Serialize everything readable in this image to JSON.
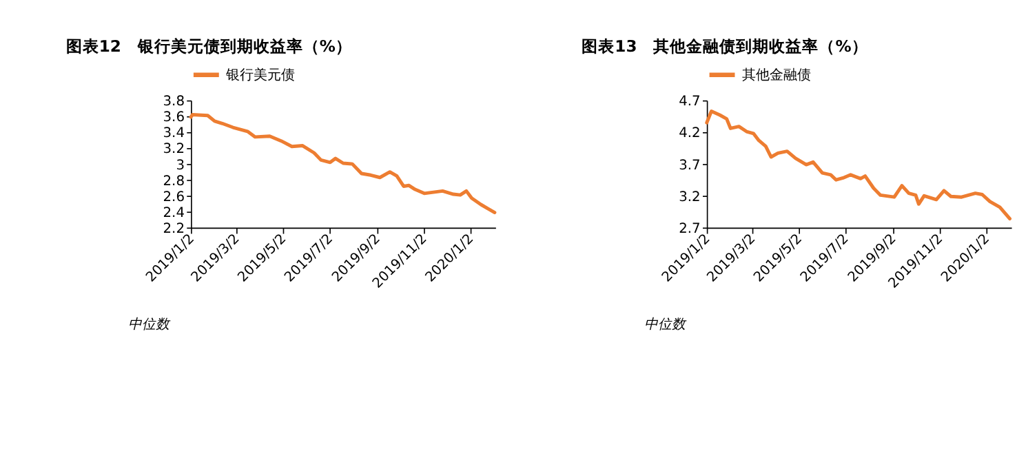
{
  "chart_data": [
    {
      "type": "line",
      "title": "图表12　银行美元债到期收益率（%）",
      "annotations": [
        "中位数"
      ],
      "legend": "top",
      "grid": false,
      "xlim": [
        "2019-01-02",
        "2020-02-04"
      ],
      "ylim": [
        2.2,
        3.8
      ],
      "yticks": [
        2.2,
        2.4,
        2.6,
        2.8,
        3,
        3.2,
        3.4,
        3.6,
        3.8
      ],
      "xticks": [
        {
          "value": "2019-01-02",
          "label": "2019/1/2"
        },
        {
          "value": "2019-03-02",
          "label": "2019/3/2"
        },
        {
          "value": "2019-05-02",
          "label": "2019/5/2"
        },
        {
          "value": "2019-07-02",
          "label": "2019/7/2"
        },
        {
          "value": "2019-09-02",
          "label": "2019/9/2"
        },
        {
          "value": "2019-11-02",
          "label": "2019/11/2"
        },
        {
          "value": "2020-01-02",
          "label": "2020/1/2"
        }
      ],
      "series": [
        {
          "name": "银行美元债",
          "color": "#ed7d31",
          "x": [
            "2019-01-02",
            "2019-01-04",
            "2019-01-24",
            "2019-02-02",
            "2019-02-12",
            "2019-02-26",
            "2019-03-17",
            "2019-03-27",
            "2019-04-15",
            "2019-04-30",
            "2019-05-14",
            "2019-05-28",
            "2019-06-12",
            "2019-06-21",
            "2019-07-03",
            "2019-07-10",
            "2019-07-20",
            "2019-08-01",
            "2019-08-13",
            "2019-08-25",
            "2019-09-06",
            "2019-09-19",
            "2019-09-28",
            "2019-10-07",
            "2019-10-14",
            "2019-10-22",
            "2019-11-03",
            "2019-11-27",
            "2019-12-11",
            "2019-12-20",
            "2019-12-28",
            "2020-01-04",
            "2020-01-16",
            "2020-01-25",
            "2020-02-03"
          ],
          "values": [
            3.59,
            3.62,
            3.61,
            3.54,
            3.51,
            3.46,
            3.41,
            3.34,
            3.35,
            3.29,
            3.22,
            3.23,
            3.14,
            3.05,
            3.02,
            3.07,
            3.01,
            3.0,
            2.88,
            2.86,
            2.83,
            2.9,
            2.85,
            2.72,
            2.73,
            2.68,
            2.63,
            2.66,
            2.62,
            2.61,
            2.66,
            2.57,
            2.49,
            2.44,
            2.39
          ]
        }
      ]
    },
    {
      "type": "line",
      "title": "图表13　其他金融债到期收益率（%）",
      "annotations": [
        "中位数"
      ],
      "legend": "top",
      "grid": false,
      "xlim": [
        "2019-01-02",
        "2020-02-04"
      ],
      "ylim": [
        2.7,
        4.7
      ],
      "yticks": [
        2.7,
        3.2,
        3.7,
        4.2,
        4.7
      ],
      "xticks": [
        {
          "value": "2019-01-02",
          "label": "2019/1/2"
        },
        {
          "value": "2019-03-02",
          "label": "2019/3/2"
        },
        {
          "value": "2019-05-02",
          "label": "2019/5/2"
        },
        {
          "value": "2019-07-02",
          "label": "2019/7/2"
        },
        {
          "value": "2019-09-02",
          "label": "2019/9/2"
        },
        {
          "value": "2019-11-02",
          "label": "2019/11/2"
        },
        {
          "value": "2020-01-02",
          "label": "2020/1/2"
        }
      ],
      "series": [
        {
          "name": "其他金融债",
          "color": "#ed7d31",
          "x": [
            "2019-01-02",
            "2019-01-08",
            "2019-01-19",
            "2019-01-28",
            "2019-02-02",
            "2019-02-13",
            "2019-02-23",
            "2019-03-04",
            "2019-03-11",
            "2019-03-20",
            "2019-03-27",
            "2019-04-05",
            "2019-04-17",
            "2019-04-28",
            "2019-05-12",
            "2019-05-21",
            "2019-06-02",
            "2019-06-13",
            "2019-06-20",
            "2019-06-29",
            "2019-07-09",
            "2019-07-22",
            "2019-07-28",
            "2019-08-08",
            "2019-08-17",
            "2019-09-04",
            "2019-09-14",
            "2019-09-23",
            "2019-10-02",
            "2019-10-06",
            "2019-10-13",
            "2019-10-29",
            "2019-11-08",
            "2019-11-17",
            "2019-12-01",
            "2019-12-19",
            "2019-12-28",
            "2020-01-07",
            "2020-01-20",
            "2020-02-02"
          ],
          "values": [
            4.35,
            4.53,
            4.47,
            4.41,
            4.26,
            4.29,
            4.21,
            4.18,
            4.07,
            3.98,
            3.81,
            3.87,
            3.9,
            3.79,
            3.69,
            3.73,
            3.56,
            3.53,
            3.45,
            3.48,
            3.53,
            3.47,
            3.51,
            3.32,
            3.21,
            3.18,
            3.36,
            3.24,
            3.21,
            3.07,
            3.2,
            3.14,
            3.28,
            3.19,
            3.18,
            3.24,
            3.22,
            3.11,
            3.02,
            2.84
          ]
        }
      ]
    }
  ]
}
